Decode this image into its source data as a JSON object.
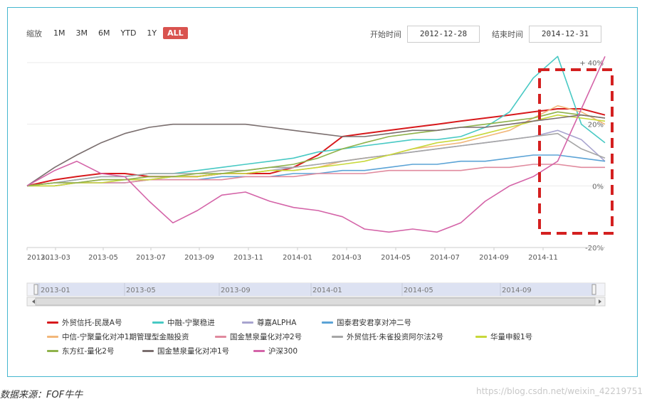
{
  "toolbar": {
    "zoom_label": "缩放",
    "zoom_options": [
      "1M",
      "3M",
      "6M",
      "YTD",
      "1Y",
      "ALL"
    ],
    "active_zoom": "ALL",
    "start_label": "开始时间",
    "start_value": "2012-12-28",
    "end_label": "结束时间",
    "end_value": "2014-12-31"
  },
  "chart_data": {
    "type": "line",
    "x_ticks": [
      "2013...",
      "2013-03",
      "2013-05",
      "2013-07",
      "2013-09",
      "2013-11",
      "2014-01",
      "2014-03",
      "2014-05",
      "2014-07",
      "2014-09",
      "2014-11"
    ],
    "y_ticks": [
      "+ 40%",
      "20%",
      "0%",
      "-20%"
    ],
    "ylim": [
      -20,
      40
    ],
    "grid": true,
    "highlight_box": {
      "color": "#d42020",
      "style": "dashed"
    },
    "x": [
      "2012-12-28",
      "2013-02-01",
      "2013-03-01",
      "2013-04-01",
      "2013-05-01",
      "2013-06-01",
      "2013-07-01",
      "2013-08-01",
      "2013-09-01",
      "2013-10-01",
      "2013-11-01",
      "2013-12-01",
      "2014-01-01",
      "2014-02-01",
      "2014-03-01",
      "2014-04-01",
      "2014-05-01",
      "2014-06-01",
      "2014-07-01",
      "2014-08-01",
      "2014-09-01",
      "2014-10-01",
      "2014-11-01",
      "2014-12-01",
      "2014-12-31"
    ],
    "series": [
      {
        "name": "外贸信托-民晟A号",
        "color": "#d7191c",
        "values": [
          0,
          2,
          3,
          4,
          4,
          3,
          3,
          3,
          4,
          4,
          4,
          6,
          10,
          16,
          17,
          18,
          19,
          20,
          21,
          22,
          23,
          24,
          25,
          25,
          23
        ]
      },
      {
        "name": "中融-宁聚稳进",
        "color": "#48c9c4",
        "values": [
          0,
          1,
          2,
          3,
          3,
          4,
          4,
          5,
          6,
          7,
          8,
          9,
          11,
          12,
          13,
          14,
          15,
          15,
          16,
          19,
          24,
          35,
          42,
          20,
          14
        ]
      },
      {
        "name": "尊嘉ALPHA",
        "color": "#a8a4cf",
        "values": [
          0,
          1,
          1,
          2,
          2,
          2,
          3,
          3,
          4,
          4,
          5,
          6,
          7,
          8,
          9,
          10,
          11,
          12,
          13,
          14,
          15,
          16,
          18,
          15,
          8
        ]
      },
      {
        "name": "国泰君安君享对冲二号",
        "color": "#5ba3d6",
        "values": [
          0,
          0,
          1,
          1,
          1,
          2,
          2,
          2,
          3,
          3,
          3,
          4,
          4,
          5,
          5,
          6,
          7,
          7,
          8,
          8,
          9,
          10,
          10,
          9,
          8
        ]
      },
      {
        "name": "中信-宁聚量化对冲1期管理型金融投资",
        "color": "#f2b77a",
        "values": [
          0,
          1,
          1,
          2,
          2,
          3,
          3,
          3,
          4,
          4,
          5,
          5,
          6,
          8,
          9,
          10,
          12,
          13,
          14,
          16,
          18,
          22,
          26,
          24,
          20
        ]
      },
      {
        "name": "国金慧泉量化对冲2号",
        "color": "#e08a9e",
        "values": [
          0,
          0,
          1,
          1,
          1,
          2,
          2,
          2,
          2,
          3,
          3,
          3,
          4,
          4,
          4,
          5,
          5,
          5,
          5,
          6,
          6,
          7,
          7,
          6,
          6
        ]
      },
      {
        "name": "外贸信托·朱雀投资阿尔法2号",
        "color": "#a6a6a6",
        "values": [
          0,
          1,
          2,
          3,
          3,
          4,
          4,
          4,
          5,
          5,
          6,
          6,
          7,
          8,
          9,
          10,
          11,
          12,
          13,
          14,
          15,
          16,
          17,
          12,
          9
        ]
      },
      {
        "name": "华量申毅1号",
        "color": "#c8d83a",
        "values": [
          0,
          0,
          1,
          1,
          2,
          2,
          3,
          3,
          4,
          4,
          5,
          5,
          6,
          7,
          8,
          10,
          12,
          14,
          15,
          17,
          19,
          21,
          23,
          22,
          21
        ]
      },
      {
        "name": "东方红-量化2号",
        "color": "#8fb24a",
        "values": [
          0,
          1,
          1,
          2,
          2,
          3,
          3,
          4,
          4,
          5,
          6,
          7,
          9,
          12,
          14,
          16,
          17,
          18,
          19,
          20,
          21,
          22,
          24,
          23,
          22
        ]
      },
      {
        "name": "国金慧泉量化对冲1号",
        "color": "#7a6e6e",
        "values": [
          0,
          6,
          10,
          14,
          17,
          19,
          20,
          20,
          20,
          20,
          19,
          18,
          17,
          16,
          16,
          17,
          18,
          18,
          19,
          19,
          20,
          21,
          22,
          23,
          22
        ]
      },
      {
        "name": "沪深300",
        "color": "#d464a8",
        "values": [
          0,
          5,
          8,
          4,
          3,
          -5,
          -12,
          -8,
          -3,
          -2,
          -5,
          -7,
          -8,
          -10,
          -14,
          -15,
          -14,
          -15,
          -12,
          -5,
          0,
          3,
          8,
          25,
          42
        ]
      }
    ],
    "navigator_ticks": [
      "2013-01",
      "2013-05",
      "2013-09",
      "2014-01",
      "2014-05",
      "2014-09"
    ]
  },
  "caption": "数据来源：FOF牛牛",
  "watermark": "https://blog.csdn.net/weixin_42219751"
}
